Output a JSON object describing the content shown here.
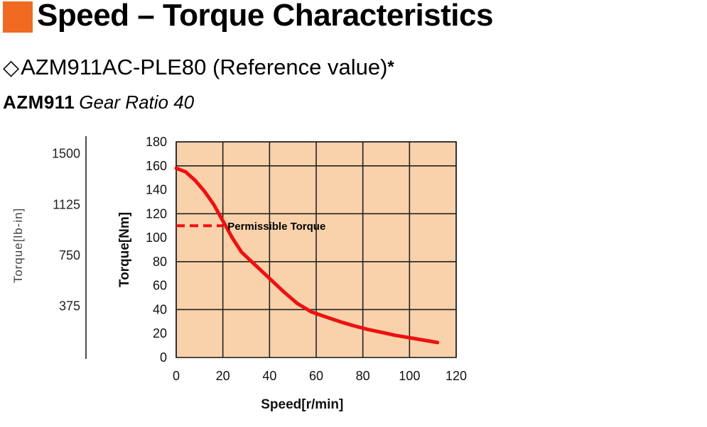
{
  "header": {
    "title": "Speed – Torque Characteristics",
    "accent_color": "#f06a24",
    "model_diamond": "◇",
    "model": "AZM911AC-PLE80 (Reference value)",
    "model_mark": "*",
    "subtitle_model": "AZM911",
    "subtitle_ratio": "Gear Ratio 40"
  },
  "chart_data": {
    "type": "line",
    "xlabel": "Speed[r/min]",
    "ylabel": "Torque[Nm]",
    "ylabel_secondary": "Torque[lb-in]",
    "xlim": [
      0,
      120
    ],
    "ylim": [
      0,
      180
    ],
    "x_ticks": [
      0,
      20,
      40,
      60,
      80,
      100,
      120
    ],
    "y_ticks": [
      0,
      20,
      40,
      60,
      80,
      100,
      120,
      140,
      160,
      180
    ],
    "y2_ticks": [
      {
        "label": "1500",
        "value": 169.5
      },
      {
        "label": "1125",
        "value": 127.1
      },
      {
        "label": "750",
        "value": 84.7
      },
      {
        "label": "375",
        "value": 42.4
      }
    ],
    "grid": true,
    "plot_background": "#f9d2ab",
    "series": [
      {
        "style": "solid",
        "color": "#ee1111",
        "x": [
          0,
          4,
          8,
          12,
          16,
          20,
          24,
          28,
          34,
          40,
          46,
          52,
          58,
          64,
          70,
          76,
          82,
          88,
          94,
          100,
          106,
          112
        ],
        "y": [
          158,
          155,
          148,
          139,
          128,
          114,
          100,
          88,
          77,
          66,
          55,
          45,
          38,
          34,
          30,
          26.5,
          23.5,
          21,
          18.5,
          16.5,
          14.5,
          12.5
        ]
      },
      {
        "name": "Permissible Torque",
        "style": "dashed",
        "color": "#ee1111",
        "x": [
          0,
          20
        ],
        "y": [
          110,
          110
        ]
      }
    ],
    "annotations": [
      {
        "text": "Permissible Torque",
        "x": 22,
        "y": 110
      }
    ]
  }
}
